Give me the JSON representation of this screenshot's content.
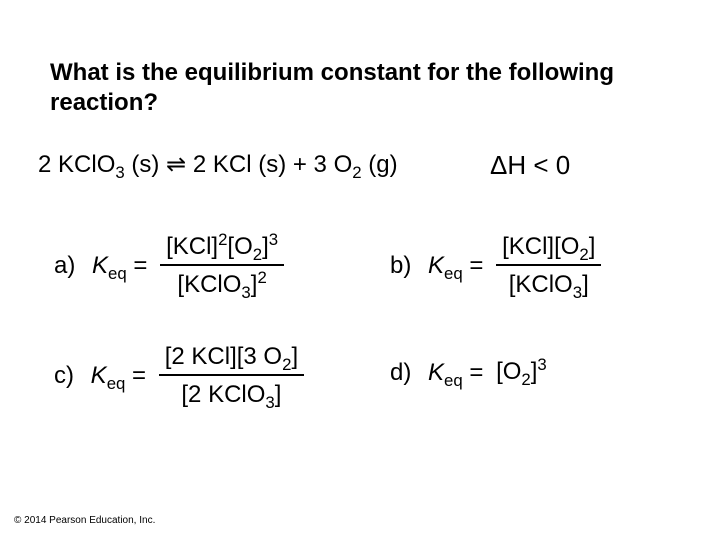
{
  "question": {
    "line1": "What is the equilibrium constant for the following",
    "line2": "reaction?"
  },
  "equation": {
    "lhs_coef": "2",
    "lhs_species_pre": "KCl",
    "lhs_species_sub": "O",
    "lhs_species_sub_num": "3",
    "lhs_state": "(s)",
    "arrow": "⇌",
    "rhs1_coef": "2",
    "rhs1_species": "KCl",
    "rhs1_state": "(s)",
    "plus": "+",
    "rhs2_coef": "3",
    "rhs2_species": "O",
    "rhs2_sub": "2",
    "rhs2_state": "(g)"
  },
  "deltaH": "ΔH < 0",
  "keq_var": "K",
  "keq_sub": "eq",
  "equals": "=",
  "options": {
    "a": {
      "label": "a)",
      "num": "[KCl]²[O₂]³",
      "den": "[KClO₃]²"
    },
    "b": {
      "label": "b)",
      "num": "[KCl][O₂]",
      "den": "[KClO₃]"
    },
    "c": {
      "label": "c)",
      "num": "[2 KCl][3 O₂]",
      "den": "[2 KClO₃]"
    },
    "d": {
      "label": "d)",
      "rhs": "[O₂]³"
    }
  },
  "copyright": "© 2014 Pearson Education, Inc."
}
